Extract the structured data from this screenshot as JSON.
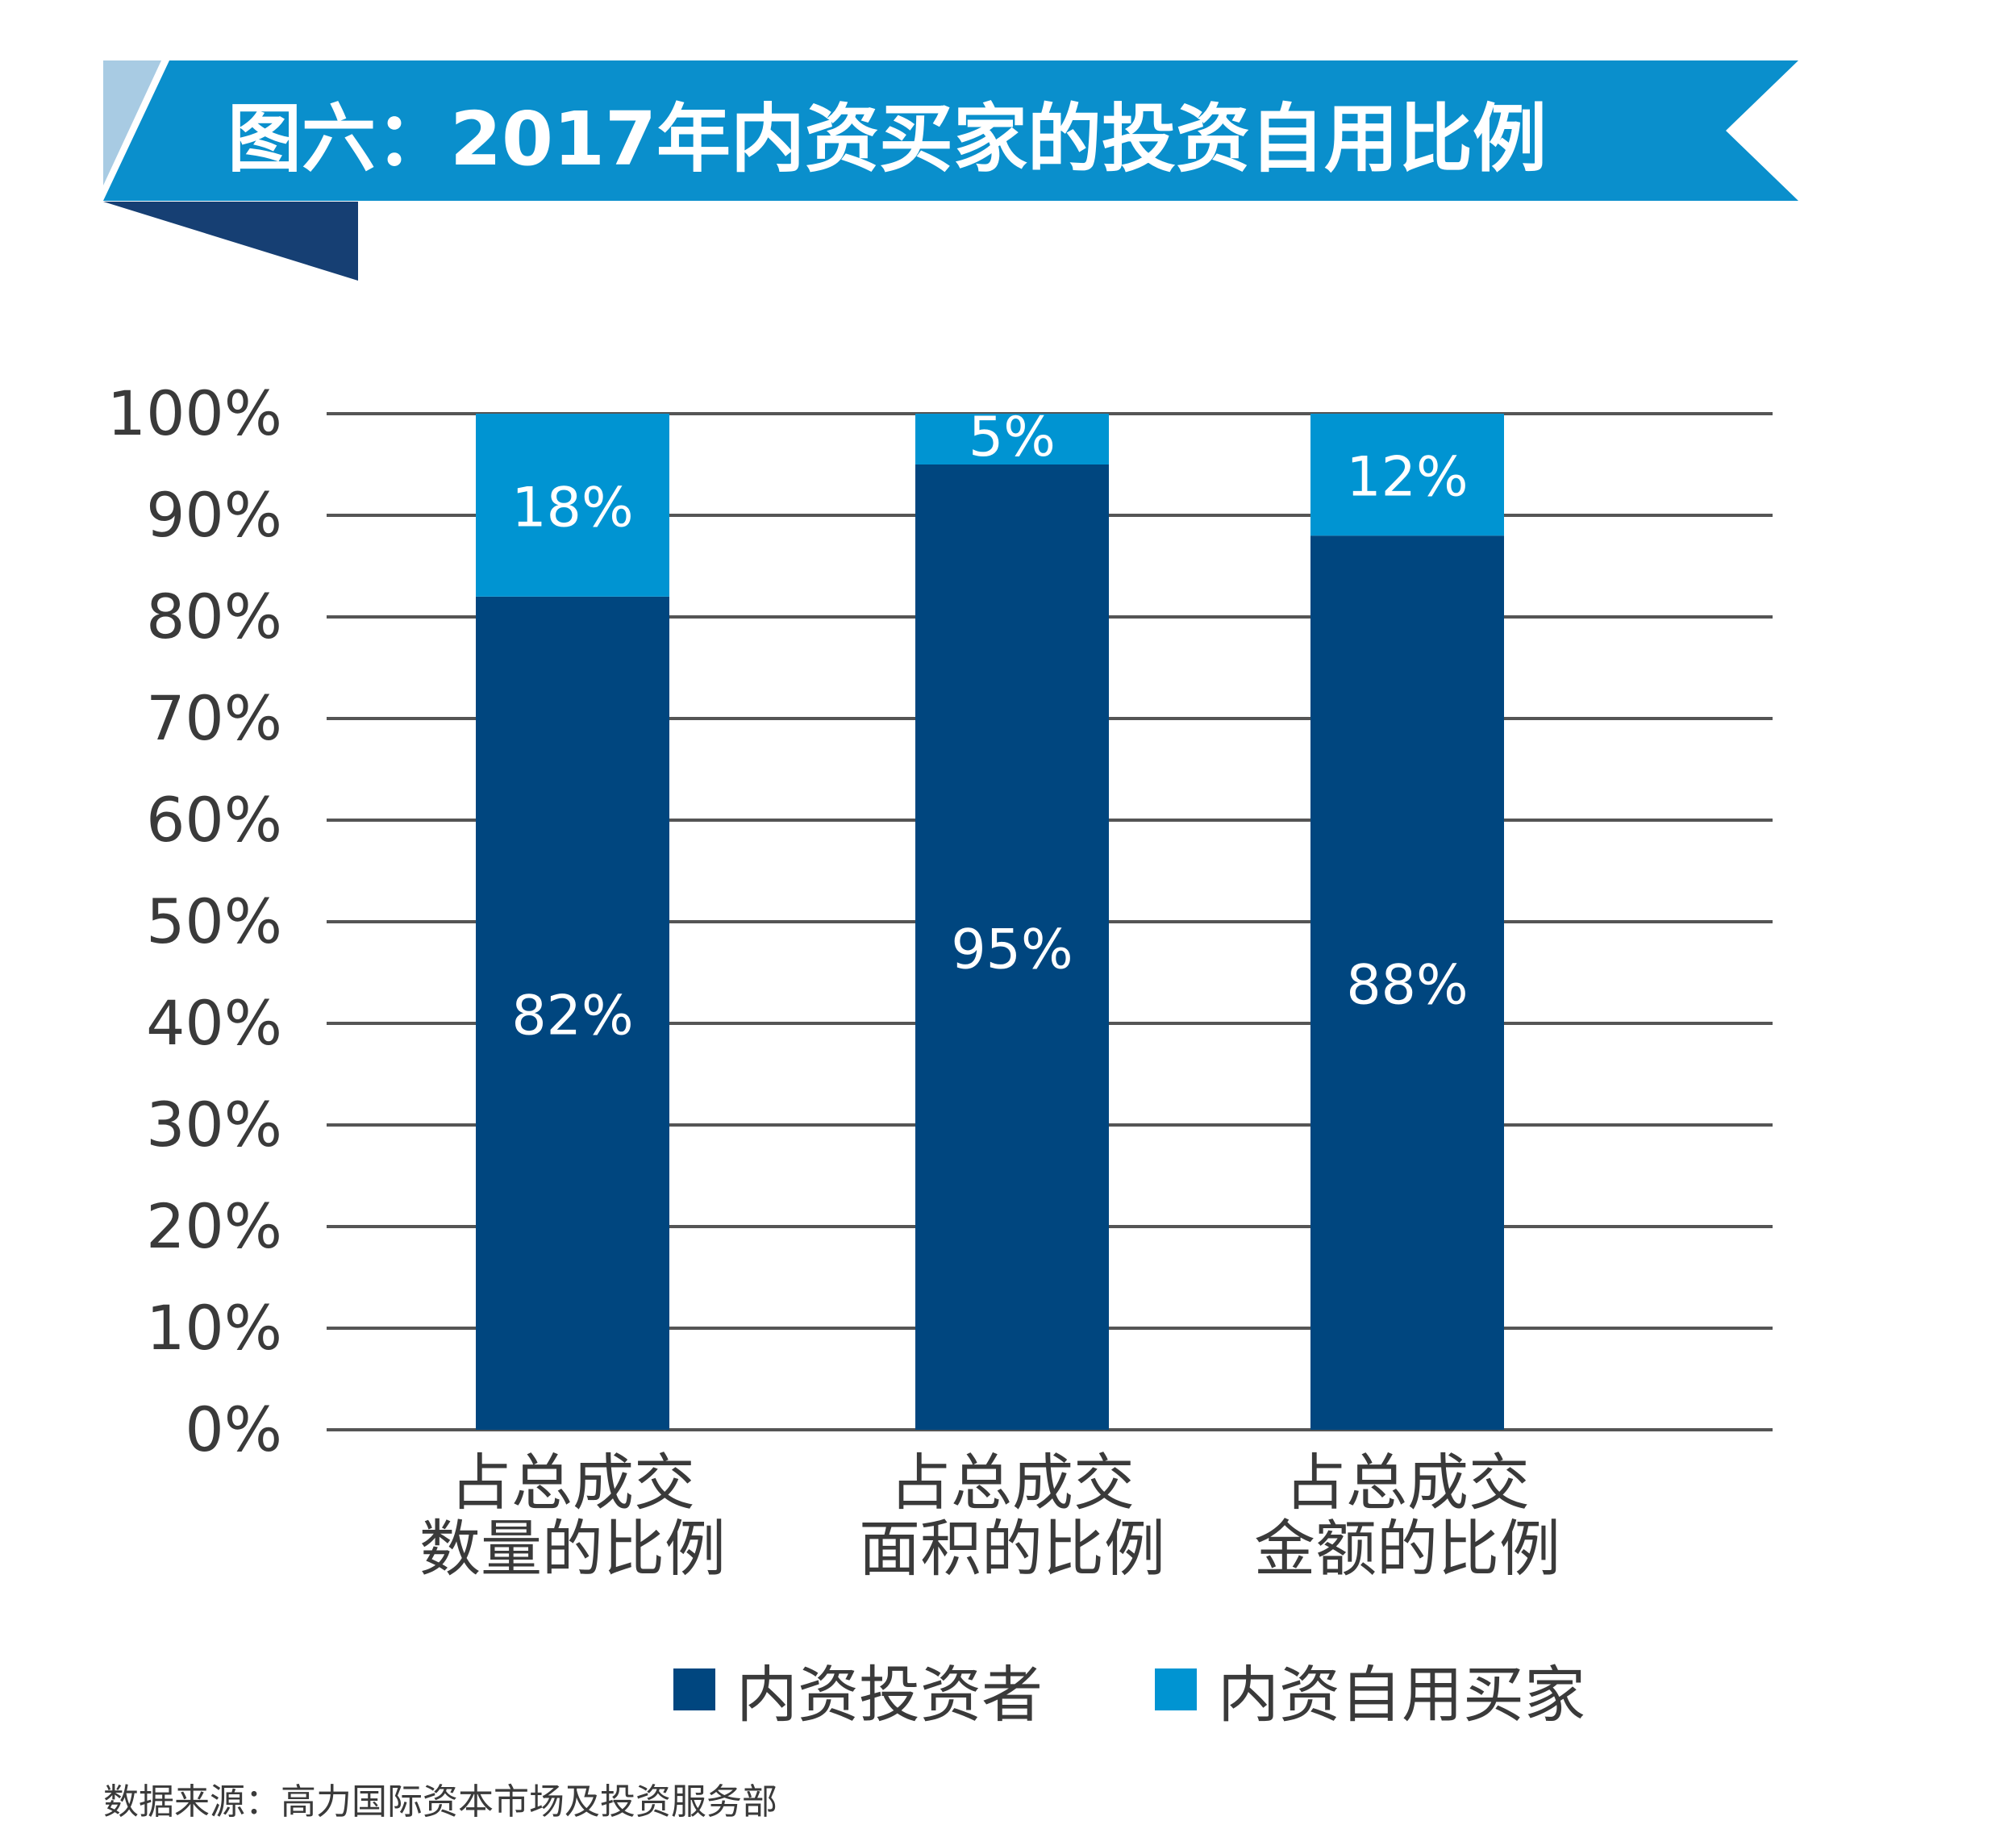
{
  "header": {
    "title": "图六：2017年内资买家的投资自用比例"
  },
  "colors": {
    "banner_main": "#0a8fcc",
    "banner_light": "#a8cbe3",
    "banner_dark": "#163f73",
    "investor": "#00467f",
    "owner_occupier": "#0094d2",
    "gridline": "#555555",
    "text": "#3a3a3a"
  },
  "chart_data": {
    "type": "bar",
    "stacked": true,
    "categories": [
      [
        "占总成交",
        "数量的比例"
      ],
      [
        "占总成交",
        "面积的比例"
      ],
      [
        "占总成交",
        "金额的比例"
      ]
    ],
    "series": [
      {
        "name": "内资投资者",
        "values": [
          82,
          95,
          88
        ],
        "labels": [
          "82%",
          "95%",
          "88%"
        ]
      },
      {
        "name": "内资自用买家",
        "values": [
          18,
          5,
          12
        ],
        "labels": [
          "18%",
          "5%",
          "12%"
        ]
      }
    ],
    "ylim": [
      0,
      100
    ],
    "yticks": [
      "0%",
      "10%",
      "20%",
      "30%",
      "40%",
      "50%",
      "60%",
      "70%",
      "80%",
      "90%",
      "100%"
    ],
    "grid": true,
    "legend_position": "bottom"
  },
  "legend": {
    "items": [
      "内资投资者",
      "内资自用买家"
    ]
  },
  "footer": {
    "source": "数据来源：高力国际资本市场及投资服务部"
  }
}
